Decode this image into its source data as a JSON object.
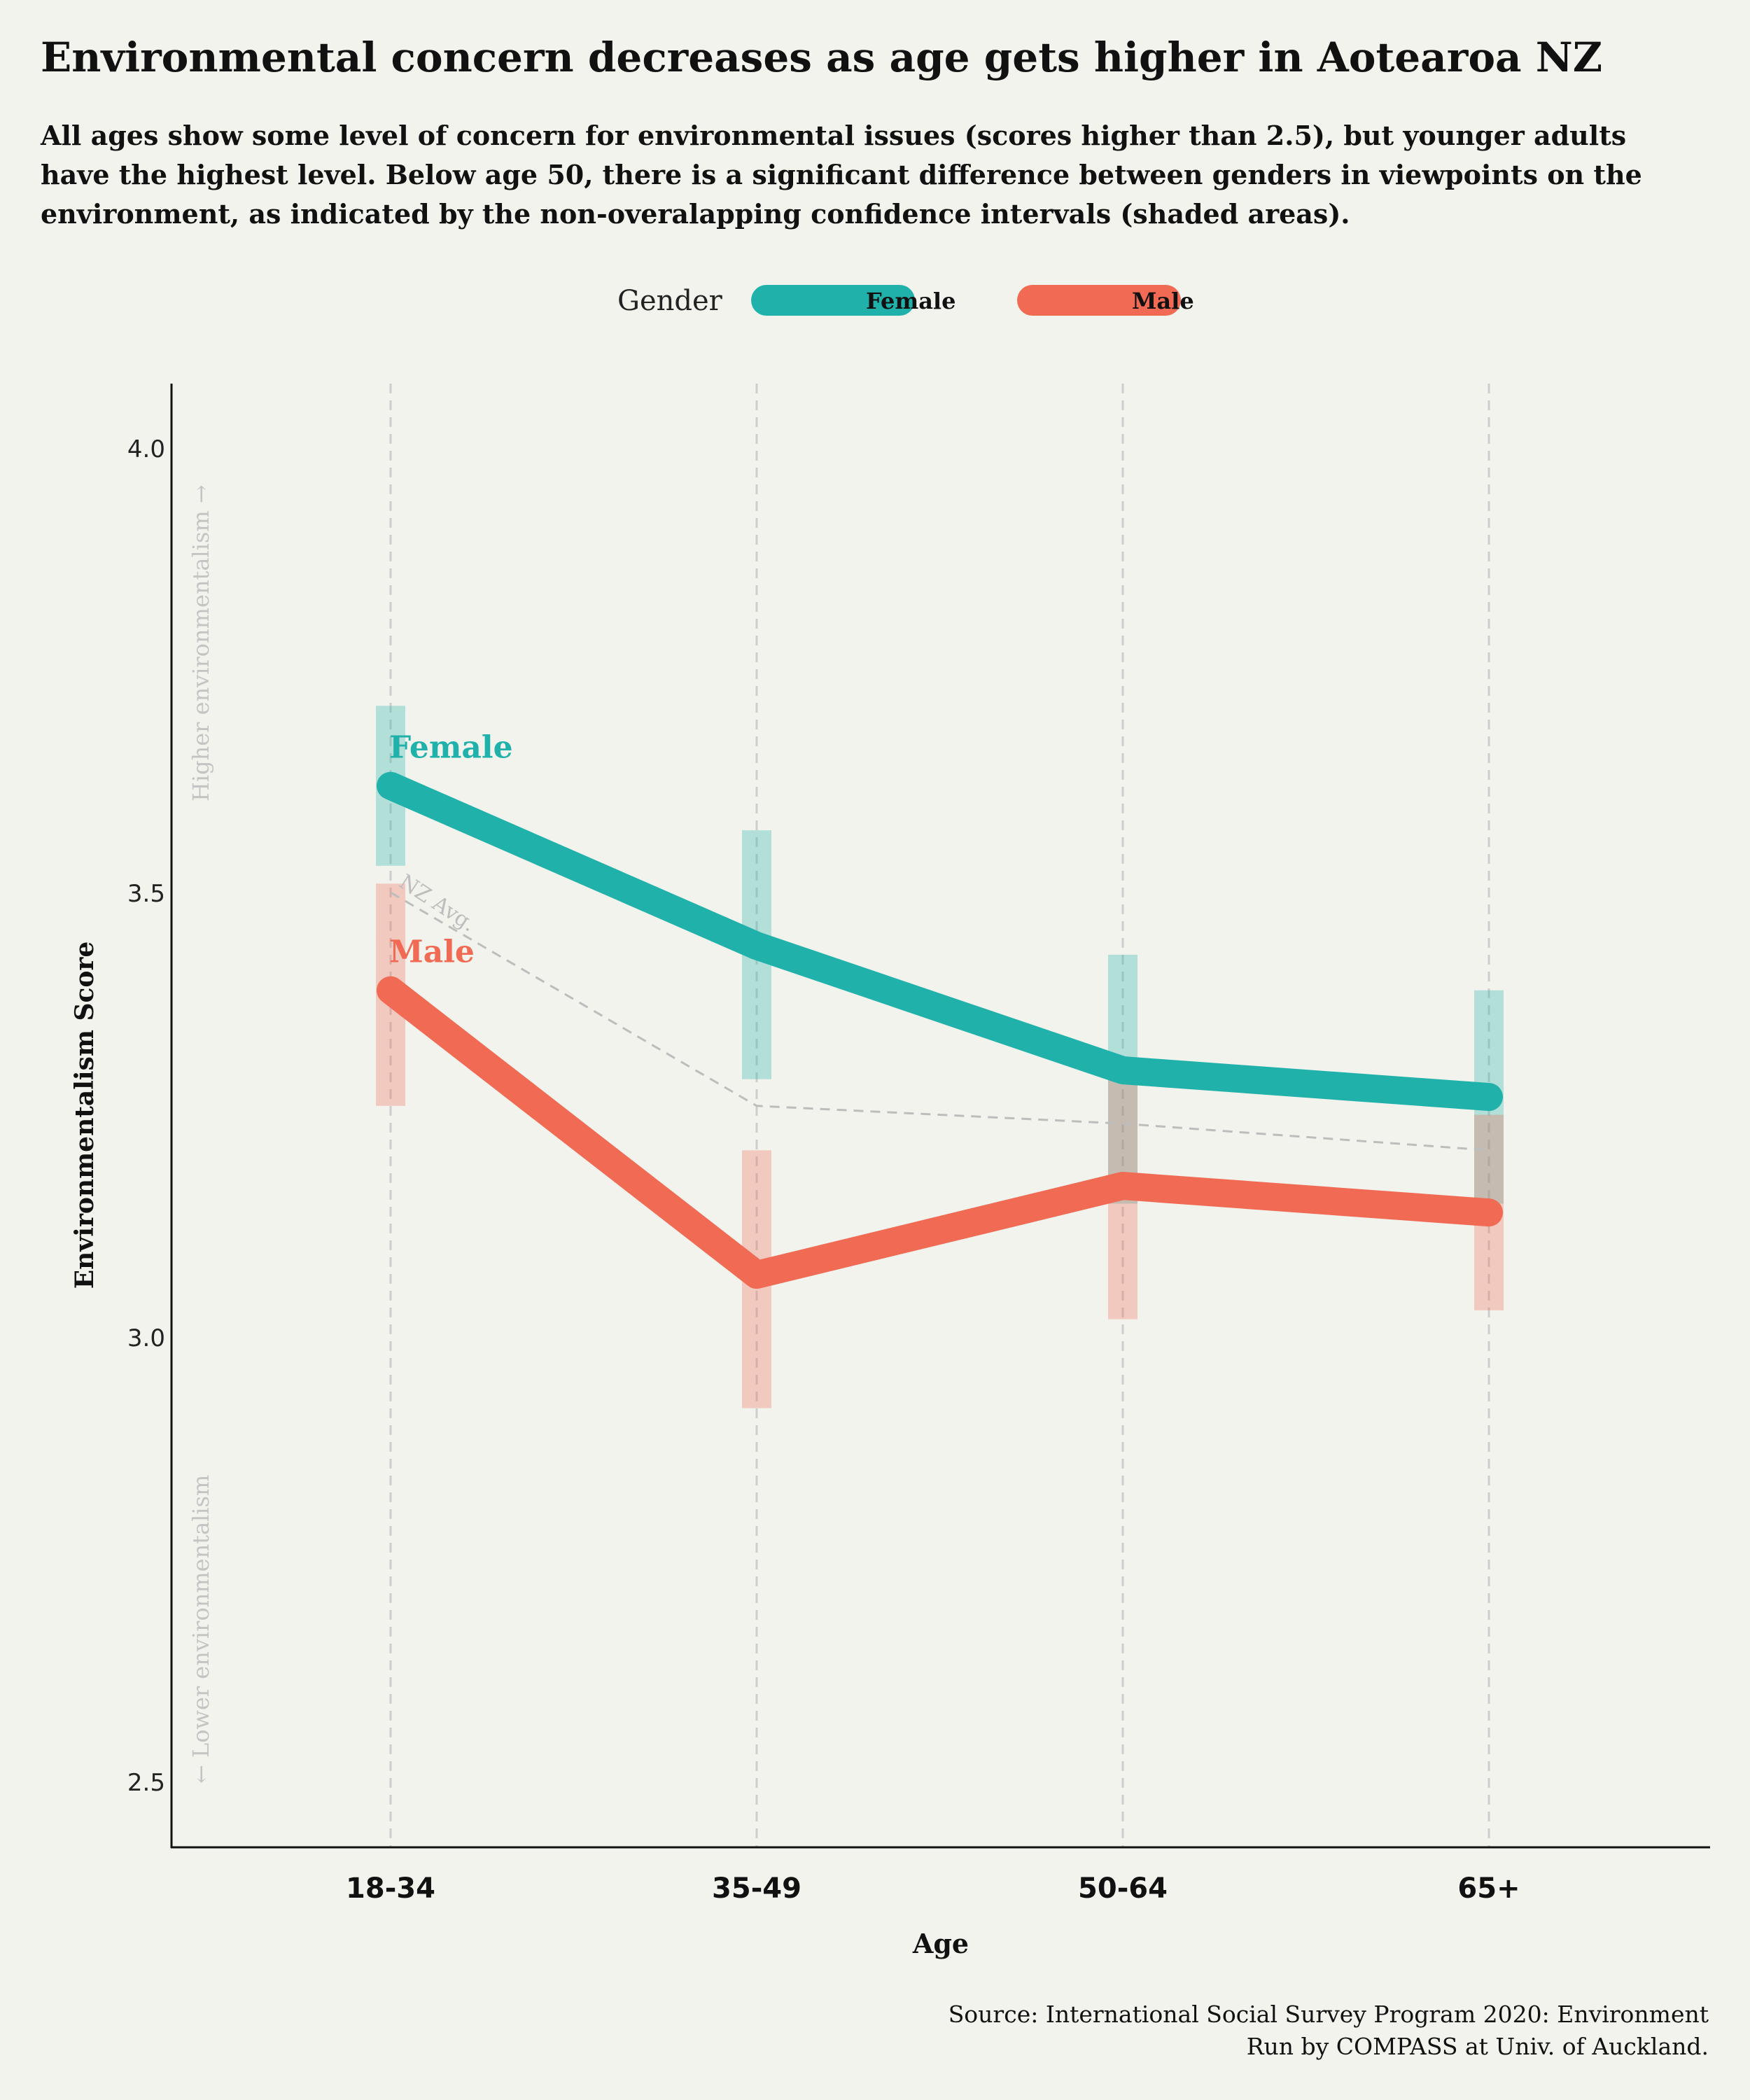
{
  "title": "Environmental concern decreases as age gets higher in Aotearoa NZ",
  "subtitle_lines": [
    "All ages show some level of concern for environmental issues (scores higher than 2.5), but younger adults",
    "have the highest level. Below age 50, there is a significant difference between genders in viewpoints on the",
    "environment, as indicated by the non-overalapping confidence intervals (shaded areas)."
  ],
  "legend": {
    "title": "Gender",
    "items": [
      {
        "label": "Female",
        "color": "#20b2aa"
      },
      {
        "label": "Male",
        "color": "#f06a54"
      }
    ]
  },
  "source_lines": [
    "Source: International Social Survey Program 2020: Environment",
    "Run by COMPASS at Univ. of Auckland."
  ],
  "colors": {
    "female": "#20b2aa",
    "male": "#f06a54",
    "avg": "#bdbdbd",
    "background": "#f3f3ee",
    "muted_text": "#c4c4c4"
  },
  "chart_data": {
    "type": "line",
    "categories": [
      "18-34",
      "35-49",
      "50-64",
      "65+"
    ],
    "xlabel": "Age",
    "ylabel": "Environmentalism Score",
    "ylim": [
      2.43,
      4.07
    ],
    "yticks": [
      2.5,
      3.0,
      3.5,
      4.0
    ],
    "ytick_labels": [
      "2.5",
      "3.0",
      "3.5",
      "4.0"
    ],
    "grid": "vertical dashed",
    "axis_annotations": {
      "higher": "Higher environmentalism →",
      "lower": "← Lower environmentalism"
    },
    "series": [
      {
        "name": "Female",
        "label": "Female",
        "values": [
          3.62,
          3.44,
          3.3,
          3.27
        ],
        "ci_low": [
          3.53,
          3.29,
          3.15,
          3.15
        ],
        "ci_high": [
          3.71,
          3.57,
          3.43,
          3.39
        ]
      },
      {
        "name": "Male",
        "label": "Male",
        "values": [
          3.39,
          3.07,
          3.17,
          3.14
        ],
        "ci_low": [
          3.26,
          2.92,
          3.02,
          3.03
        ],
        "ci_high": [
          3.51,
          3.21,
          3.3,
          3.25
        ]
      }
    ],
    "average": {
      "label": "NZ Avg.",
      "values": [
        3.5,
        3.26,
        3.24,
        3.21
      ]
    }
  }
}
